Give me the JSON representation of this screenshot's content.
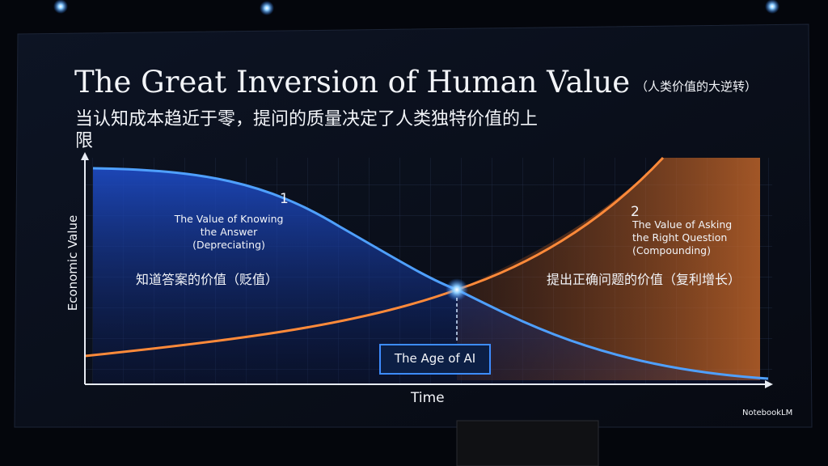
{
  "slide": {
    "title": "The Great Inversion of Human Value",
    "title_note": "（人类价值的大逆转）",
    "subtitle": "当认知成本趋近于零，提问的质量决定了人类独特价值的上限",
    "y_axis_label": "Economic Value",
    "x_axis_label": "Time",
    "curves": [
      {
        "number": "1",
        "label_lines": [
          "The Value of Knowing",
          "the Answer",
          "(Depreciating)"
        ],
        "chinese_label": "知道答案的价值（贬值）"
      },
      {
        "number": "2",
        "label_lines": [
          "The Value of Asking",
          "the Right Question",
          "(Compounding)"
        ],
        "chinese_label": "提出正确问题的价值（复利增长）"
      }
    ],
    "intersection_label": "The Age of AI",
    "brand": "NotebookLM"
  }
}
